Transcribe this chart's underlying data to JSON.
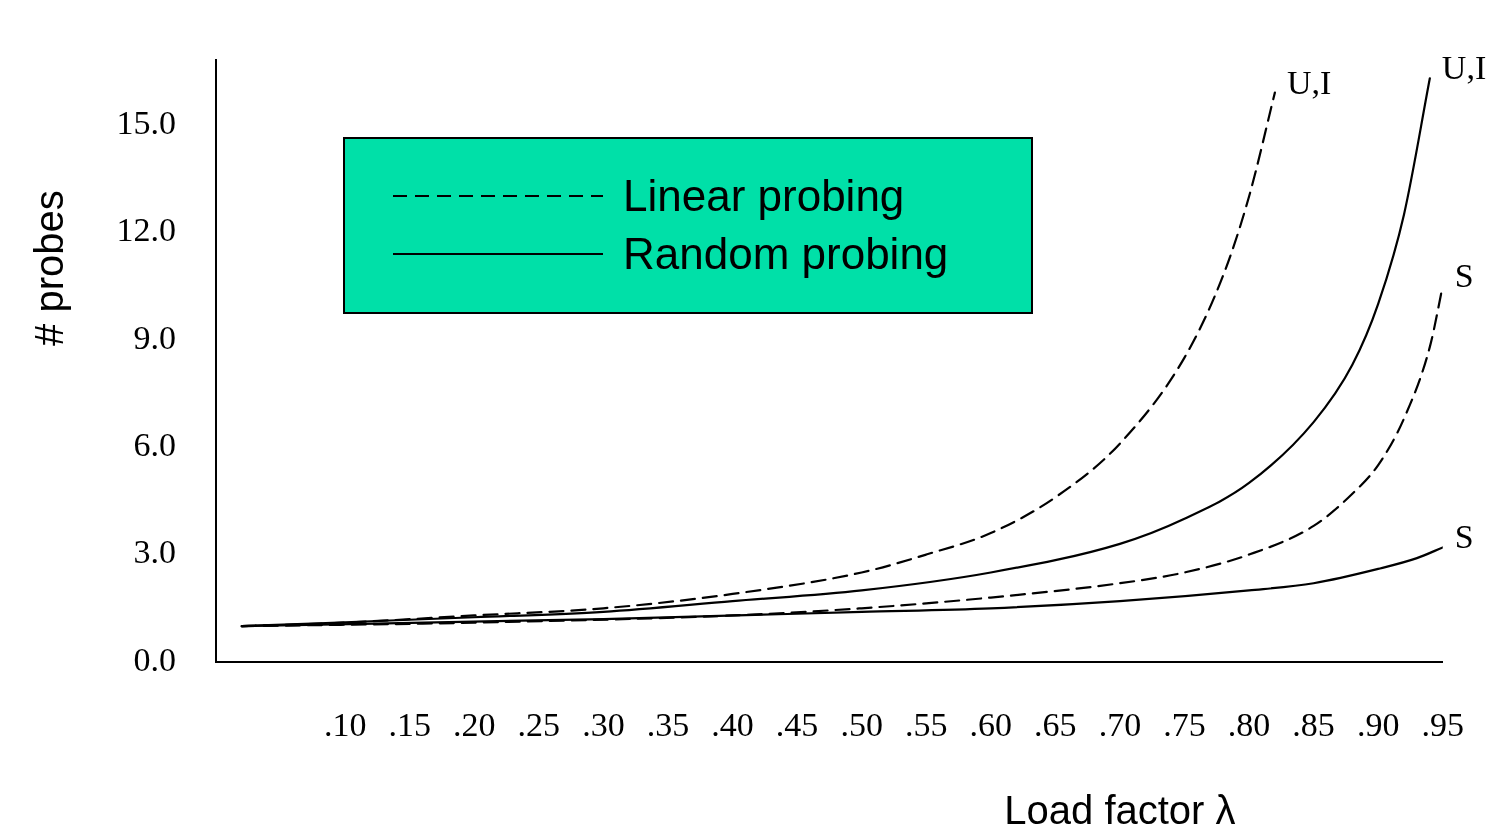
{
  "chart_data": {
    "type": "line",
    "xlabel": "Load factor λ",
    "ylabel": "# probes",
    "xlim": [
      0,
      0.95
    ],
    "ylim": [
      0,
      16.8
    ],
    "xticks": [
      {
        "value": 0.1,
        "label": ".10"
      },
      {
        "value": 0.15,
        "label": ".15"
      },
      {
        "value": 0.2,
        "label": ".20"
      },
      {
        "value": 0.25,
        "label": ".25"
      },
      {
        "value": 0.3,
        "label": ".30"
      },
      {
        "value": 0.35,
        "label": ".35"
      },
      {
        "value": 0.4,
        "label": ".40"
      },
      {
        "value": 0.45,
        "label": ".45"
      },
      {
        "value": 0.5,
        "label": ".50"
      },
      {
        "value": 0.55,
        "label": ".55"
      },
      {
        "value": 0.6,
        "label": ".60"
      },
      {
        "value": 0.65,
        "label": ".65"
      },
      {
        "value": 0.7,
        "label": ".70"
      },
      {
        "value": 0.75,
        "label": ".75"
      },
      {
        "value": 0.8,
        "label": ".80"
      },
      {
        "value": 0.85,
        "label": ".85"
      },
      {
        "value": 0.9,
        "label": ".90"
      },
      {
        "value": 0.95,
        "label": ".95"
      }
    ],
    "yticks": [
      {
        "value": 0,
        "label": "0.0"
      },
      {
        "value": 3,
        "label": "3.0"
      },
      {
        "value": 6,
        "label": "6.0"
      },
      {
        "value": 9,
        "label": "9.0"
      },
      {
        "value": 12,
        "label": "12.0"
      },
      {
        "value": 15,
        "label": "15.0"
      }
    ],
    "grid": false,
    "legend": "top left",
    "marker": "none",
    "series": [
      {
        "name": "Linear probing",
        "color": "#000000",
        "line_style": "dashed",
        "x": [
          0.02,
          0.1,
          0.2,
          0.3,
          0.4,
          0.5,
          0.55,
          0.6,
          0.65,
          0.7,
          0.75,
          0.78,
          0.8,
          0.82
        ],
        "values": [
          1.0,
          1.1,
          1.3,
          1.5,
          1.9,
          2.5,
          3.0,
          3.6,
          4.6,
          6.1,
          8.5,
          10.8,
          13.0,
          15.9
        ]
      },
      {
        "color": "#000000",
        "line_style": "dashed",
        "x": [
          0.02,
          0.2,
          0.4,
          0.5,
          0.6,
          0.7,
          0.75,
          0.8,
          0.85,
          0.88,
          0.9,
          0.92,
          0.94,
          0.95
        ],
        "values": [
          1.0,
          1.1,
          1.3,
          1.5,
          1.8,
          2.2,
          2.5,
          3.0,
          3.8,
          4.7,
          5.5,
          6.8,
          8.8,
          10.5
        ]
      },
      {
        "name": "Random probing",
        "color": "#000000",
        "line_style": "solid",
        "x": [
          0.02,
          0.2,
          0.3,
          0.4,
          0.5,
          0.6,
          0.7,
          0.75,
          0.8,
          0.85,
          0.88,
          0.9,
          0.92,
          0.94
        ],
        "values": [
          1.0,
          1.25,
          1.4,
          1.7,
          2.0,
          2.5,
          3.3,
          4.0,
          5.0,
          6.7,
          8.3,
          10.0,
          12.5,
          16.3
        ]
      },
      {
        "color": "#000000",
        "line_style": "solid",
        "x": [
          0.02,
          0.3,
          0.5,
          0.6,
          0.7,
          0.8,
          0.85,
          0.9,
          0.93,
          0.95
        ],
        "values": [
          1.0,
          1.2,
          1.4,
          1.5,
          1.7,
          2.0,
          2.2,
          2.6,
          2.9,
          3.2
        ]
      }
    ],
    "annotations": [
      {
        "text": "U,I",
        "x": 0.82,
        "y": 15.9
      },
      {
        "text": "S",
        "x": 0.95,
        "y": 10.5
      },
      {
        "text": "U,I",
        "x": 0.94,
        "y": 16.3
      },
      {
        "text": "S",
        "x": 0.95,
        "y": 3.2
      }
    ]
  }
}
